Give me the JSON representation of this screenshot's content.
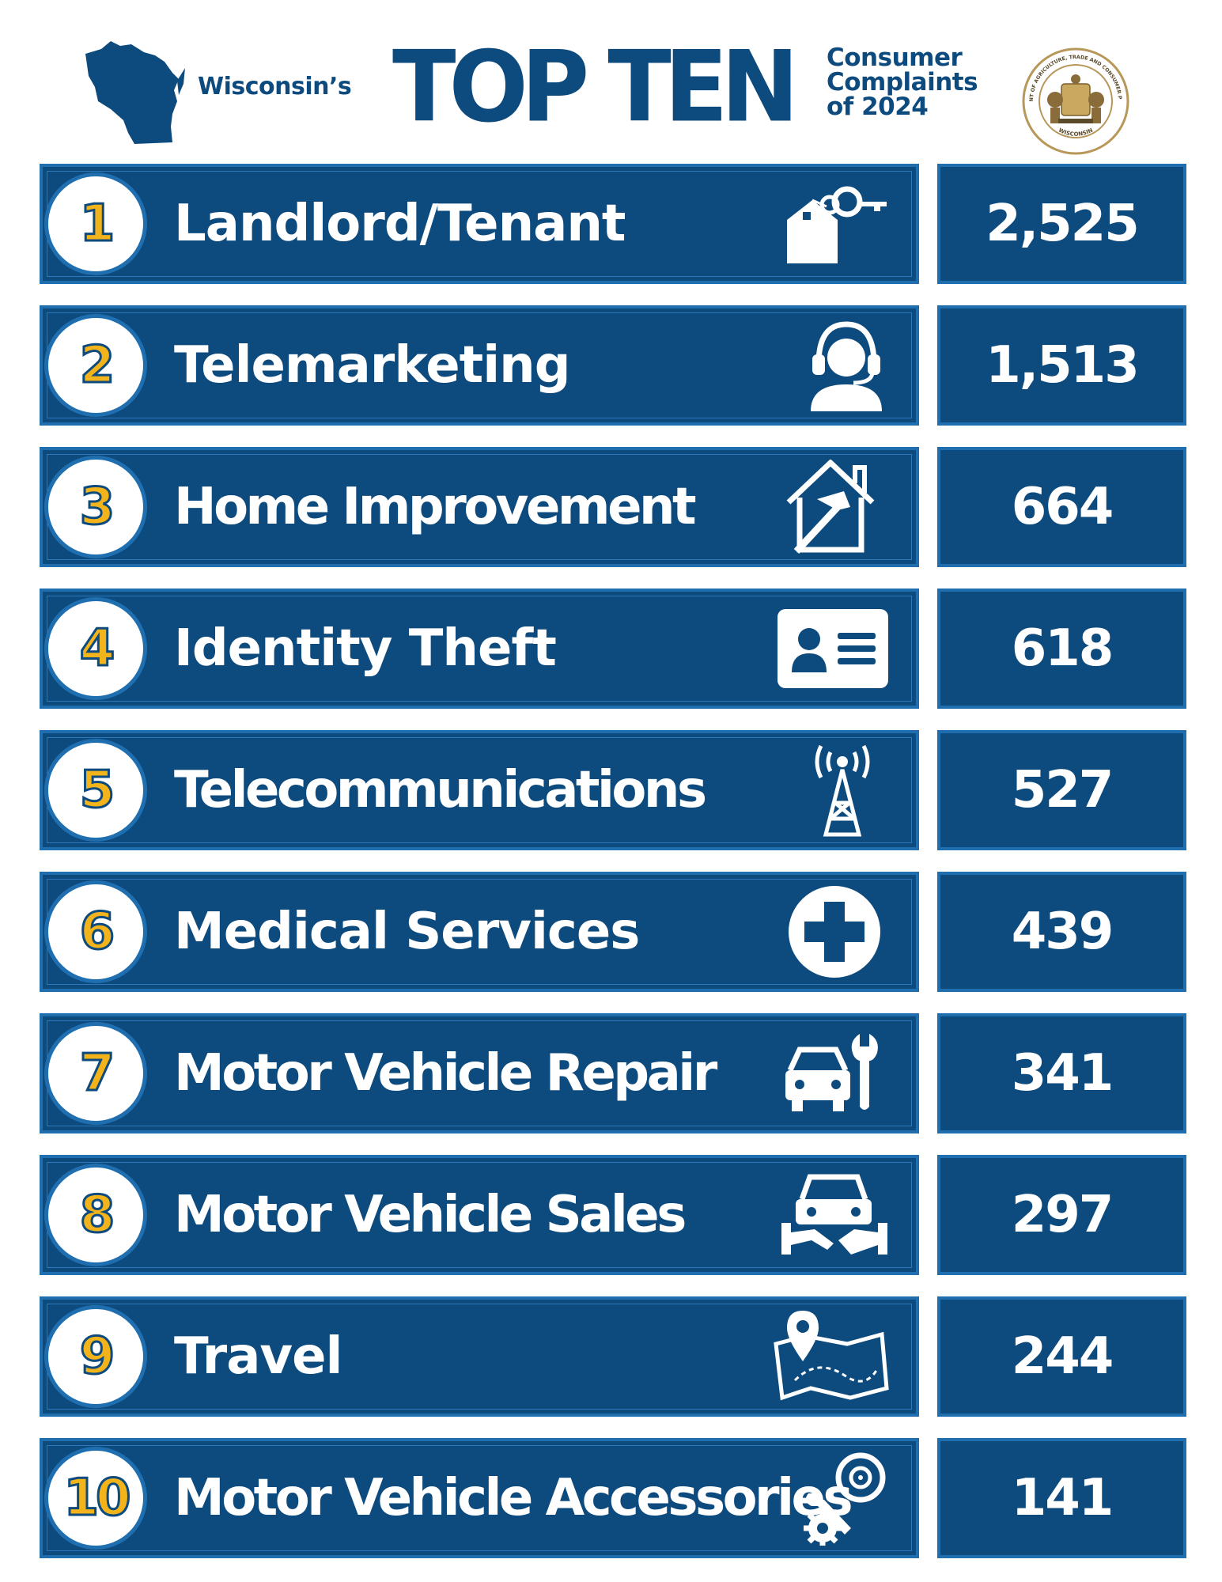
{
  "header": {
    "state_label": "Wisconsin’s",
    "title": "TOP TEN",
    "subtitle_lines": [
      "Consumer",
      "Complaints",
      "of 2024"
    ],
    "seal_text_top": "DEPARTMENT OF AGRICULTURE, TRADE AND CONSUMER PROTECTION",
    "seal_text_bottom": "WISCONSIN"
  },
  "colors": {
    "navy": "#0d4a7e",
    "border_blue": "#1f6fb0",
    "rank_gold": "#f3b41b",
    "white": "#ffffff"
  },
  "items": [
    {
      "rank": "1",
      "category": "Landlord/Tenant",
      "count": "2,525",
      "icon": "house-key-icon"
    },
    {
      "rank": "2",
      "category": "Telemarketing",
      "count": "1,513",
      "icon": "headset-person-icon"
    },
    {
      "rank": "3",
      "category": "Home Improvement",
      "count": "664",
      "icon": "house-hammer-icon"
    },
    {
      "rank": "4",
      "category": "Identity Theft",
      "count": "618",
      "icon": "id-card-icon"
    },
    {
      "rank": "5",
      "category": "Telecommunications",
      "count": "527",
      "icon": "cell-tower-icon"
    },
    {
      "rank": "6",
      "category": "Medical Services",
      "count": "439",
      "icon": "medical-cross-icon"
    },
    {
      "rank": "7",
      "category": "Motor Vehicle Repair",
      "count": "341",
      "icon": "car-wrench-icon"
    },
    {
      "rank": "8",
      "category": "Motor Vehicle Sales",
      "count": "297",
      "icon": "car-handshake-icon"
    },
    {
      "rank": "9",
      "category": "Travel",
      "count": "244",
      "icon": "map-pin-icon"
    },
    {
      "rank": "10",
      "category": "Motor Vehicle Accessories",
      "count": "141",
      "icon": "gears-wrench-icon"
    }
  ]
}
